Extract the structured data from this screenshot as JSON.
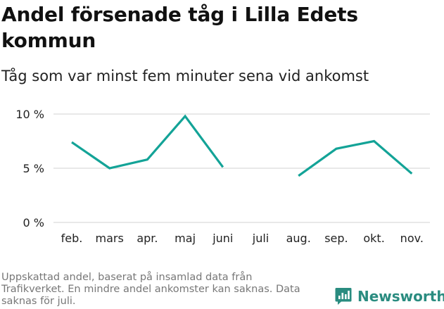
{
  "title": "Andel försenade tåg i Lilla Edets kommun",
  "subtitle": "Tåg som var minst fem minuter sena vid ankomst",
  "footnote": "Uppskattad andel, baserat på insamlad data från Trafikverket. En mindre andel ankomster kan saknas. Data saknas för juli.",
  "brand": {
    "name": "Newsworthy",
    "icon": "newsworthy-logo-icon",
    "color": "#2a8c80"
  },
  "colors": {
    "line": "#13a397",
    "grid": "#d9d9d9",
    "axis_text": "#222222"
  },
  "chart_data": {
    "type": "line",
    "categories": [
      "feb.",
      "mars",
      "apr.",
      "maj",
      "juni",
      "juli",
      "aug.",
      "sep.",
      "okt.",
      "nov."
    ],
    "series": [
      {
        "values": [
          7.4,
          5.0,
          5.8,
          9.8,
          5.1,
          null,
          4.3,
          6.8,
          7.5,
          4.5
        ]
      }
    ],
    "y_ticks": [
      0,
      5,
      10
    ],
    "y_tick_labels": [
      "0 %",
      "5 %",
      "10 %"
    ],
    "ylim": [
      0,
      10
    ],
    "grid": true
  }
}
